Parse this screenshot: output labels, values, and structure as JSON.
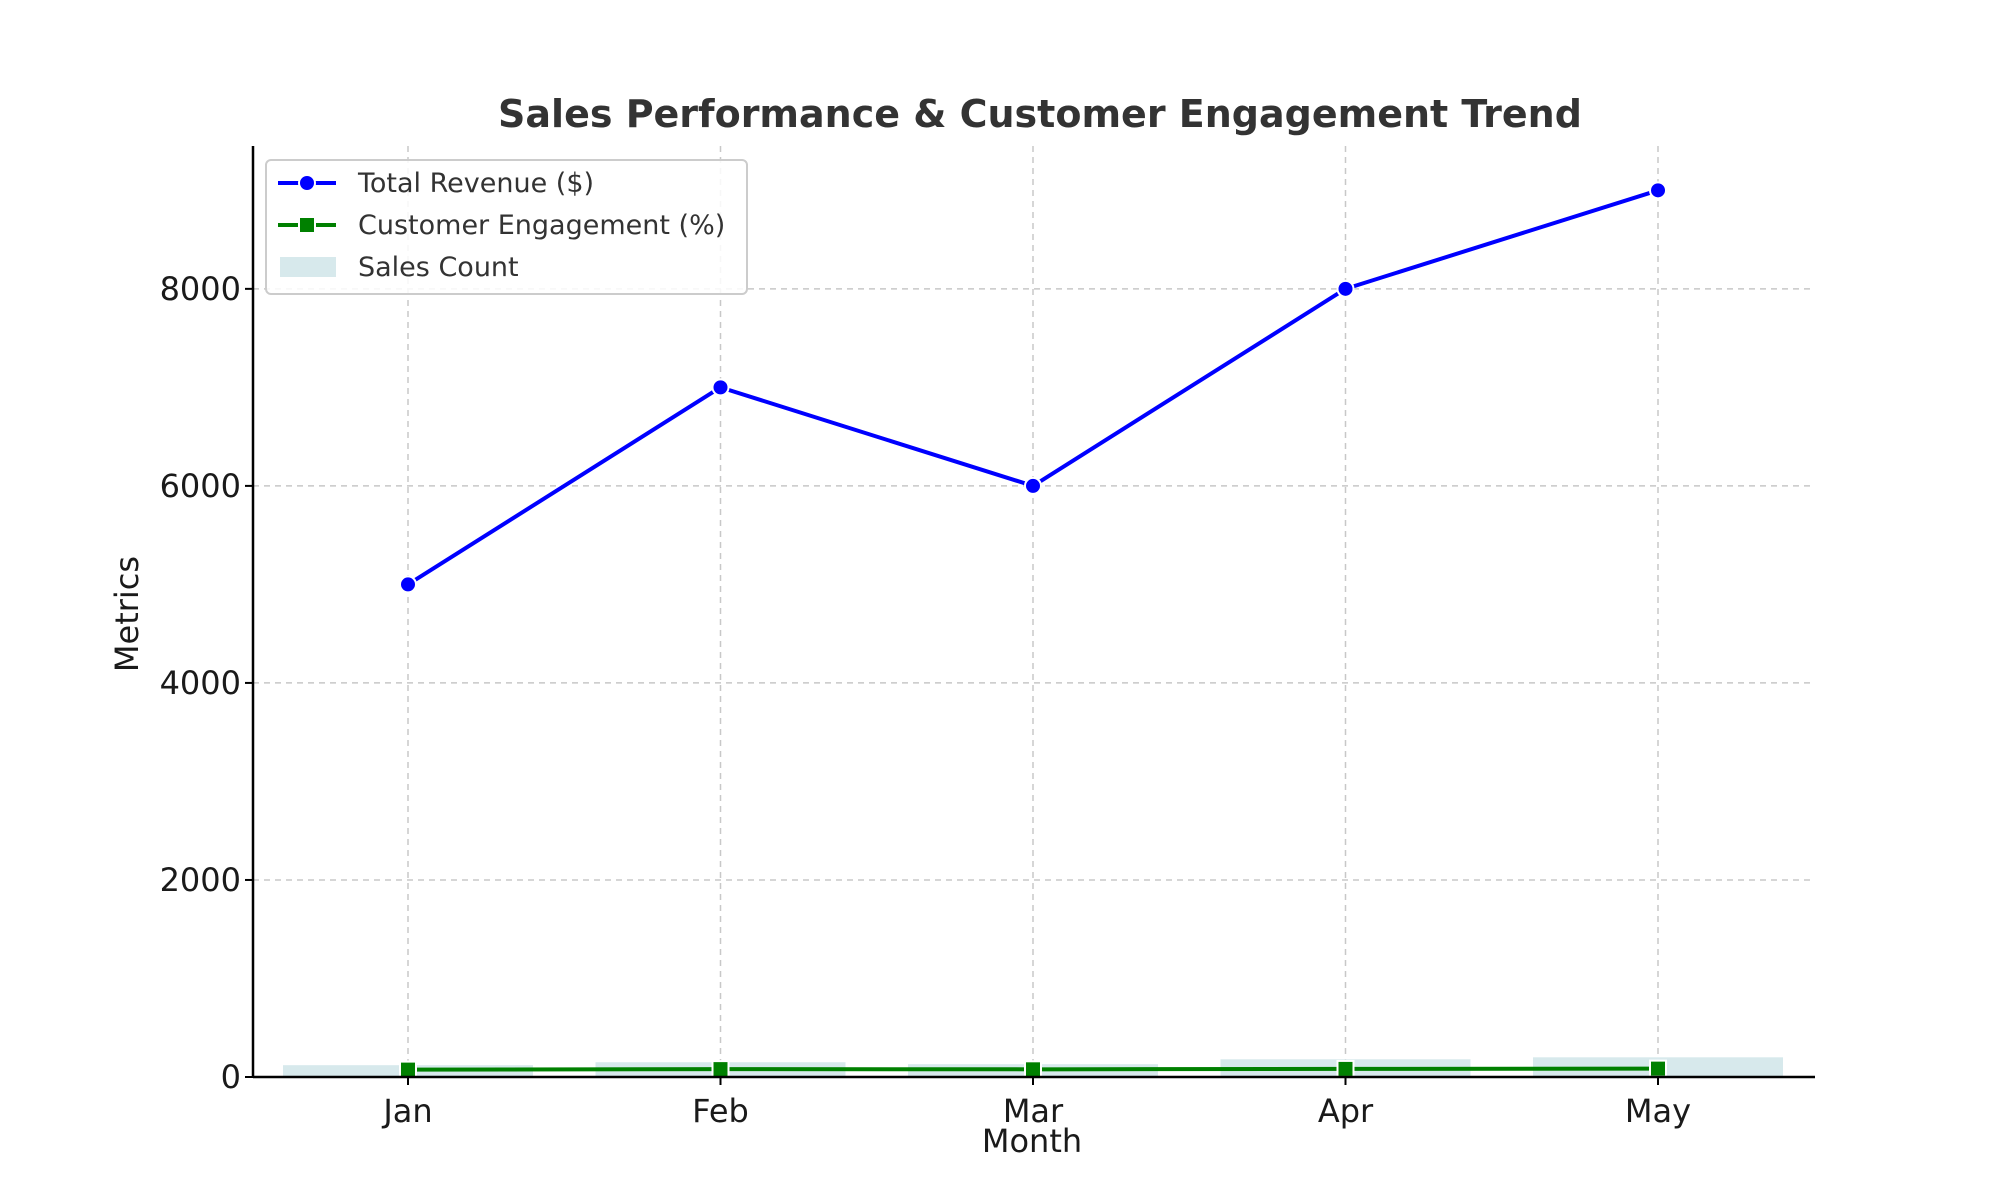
{
  "chart_data": {
    "type": "line",
    "title": "Sales Performance & Customer Engagement Trend",
    "xlabel": "Month",
    "ylabel": "Metrics",
    "categories": [
      "Jan",
      "Feb",
      "Mar",
      "Apr",
      "May"
    ],
    "ylim": [
      0,
      9450
    ],
    "yticks": [
      0,
      2000,
      4000,
      6000,
      8000
    ],
    "grid": true,
    "legend_position": "top-left",
    "series": [
      {
        "name": "Total Revenue ($)",
        "type": "line",
        "marker": "circle",
        "color": "#0000ff",
        "values": [
          5000,
          7000,
          6000,
          8000,
          9000
        ]
      },
      {
        "name": "Customer Engagement (%)",
        "type": "line",
        "marker": "square",
        "color": "#008000",
        "values": [
          75,
          80,
          78,
          82,
          85
        ]
      },
      {
        "name": "Sales Count",
        "type": "bar",
        "color": "#d7e9ec",
        "values": [
          120,
          150,
          130,
          180,
          200
        ]
      }
    ]
  }
}
